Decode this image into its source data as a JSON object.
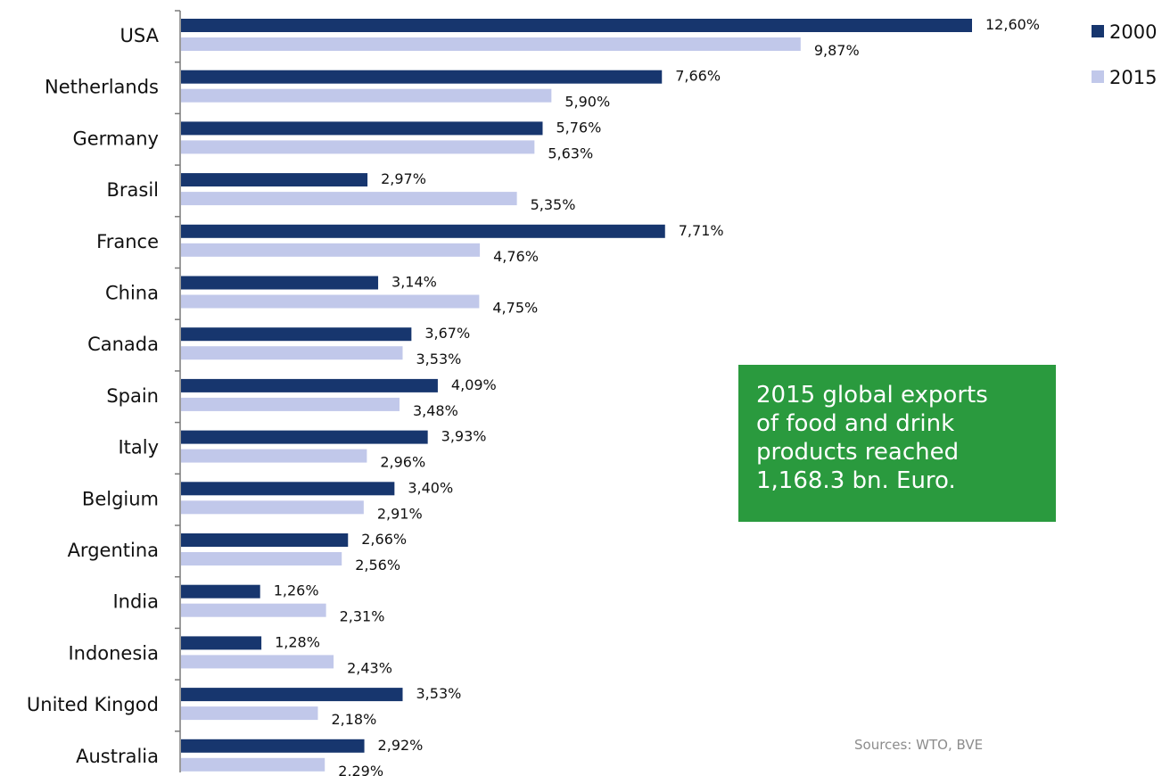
{
  "chart_data": {
    "type": "bar",
    "orientation": "horizontal",
    "categories": [
      "USA",
      "Netherlands",
      "Germany",
      "Brasil",
      "France",
      "China",
      "Canada",
      "Spain",
      "Italy",
      "Belgium",
      "Argentina",
      "India",
      "Indonesia",
      "United Kingod",
      "Australia"
    ],
    "series": [
      {
        "name": "2000",
        "color": "#17366e",
        "values": [
          12.6,
          7.66,
          5.76,
          2.97,
          7.71,
          3.14,
          3.67,
          4.09,
          3.93,
          3.4,
          2.66,
          1.26,
          1.28,
          3.53,
          2.92
        ],
        "labels": [
          "12,60%",
          "7,66%",
          "5,76%",
          "2,97%",
          "7,71%",
          "3,14%",
          "3,67%",
          "4,09%",
          "3,93%",
          "3,40%",
          "2,66%",
          "1,26%",
          "1,28%",
          "3,53%",
          "2,92%"
        ]
      },
      {
        "name": "2015",
        "color": "#c1c8ea",
        "values": [
          9.87,
          5.9,
          5.63,
          5.35,
          4.76,
          4.75,
          3.53,
          3.48,
          2.96,
          2.91,
          2.56,
          2.31,
          2.43,
          2.18,
          2.29
        ],
        "labels": [
          "9,87%",
          "5,90%",
          "5,63%",
          "5,35%",
          "4,76%",
          "4,75%",
          "3,53%",
          "3,48%",
          "2,96%",
          "2,91%",
          "2,56%",
          "2,31%",
          "2,43%",
          "2,18%",
          "2,29%"
        ]
      }
    ],
    "xlim": [
      0,
      12.6
    ],
    "grid": false,
    "legend_position": "top-right",
    "title": "",
    "xlabel": "",
    "ylabel": ""
  },
  "callout": {
    "lines": [
      "2015 global exports",
      "of food and drink",
      "products reached",
      "1,168.3 bn. Euro."
    ],
    "color": "#2a9a3e"
  },
  "source_note": "Sources: WTO, BVE"
}
